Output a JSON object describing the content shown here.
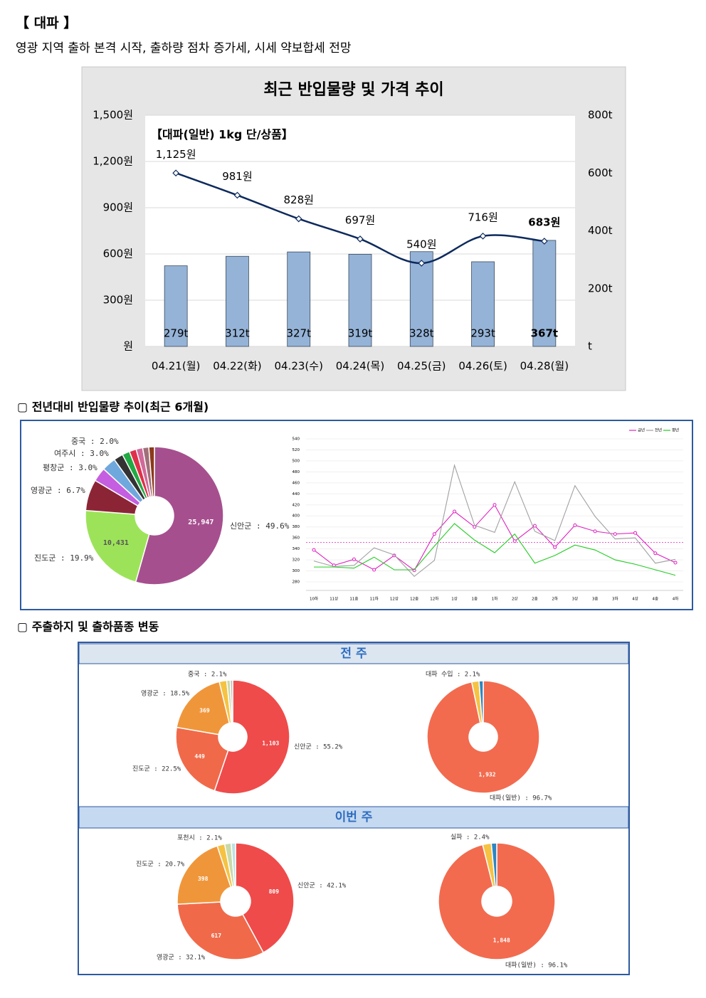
{
  "title": "【 대파 】",
  "subtitle": "영광 지역 출하 본격 시작, 출하량 점차 증가세, 시세 약보합세 전망",
  "section_titles": [
    "▢ 전년대비 반입물량 추이(최근 6개월)",
    "▢ 주출하지 및 출하품종 변동"
  ],
  "panel_titles": [
    "전 주",
    "이번 주"
  ],
  "chart_data": [
    {
      "type": "combo",
      "title": "최근 반입물량 및 가격 추이",
      "annotation": "【대파(일반) 1kg 단/상품】",
      "categories": [
        "04.21(월)",
        "04.22(화)",
        "04.23(수)",
        "04.24(목)",
        "04.25(금)",
        "04.26(토)",
        "04.28(월)"
      ],
      "series": [
        {
          "type": "bar",
          "axis": "y2",
          "color": "#95b3d7",
          "values": [
            279,
            312,
            327,
            319,
            328,
            293,
            367
          ],
          "value_labels": [
            "279t",
            "312t",
            "327t",
            "319t",
            "328t",
            "293t",
            "367t"
          ]
        },
        {
          "type": "line",
          "color": "#0d2a5c",
          "values": [
            1125,
            981,
            828,
            697,
            540,
            716,
            683
          ],
          "value_labels": [
            "1,125원",
            "981원",
            "828원",
            "697원",
            "540원",
            "716원",
            "683원"
          ]
        }
      ],
      "ylim": [
        0,
        1500
      ],
      "yticks": [
        {
          "value": 0,
          "label": "원"
        },
        {
          "value": 300,
          "label": "300원"
        },
        {
          "value": 600,
          "label": "600원"
        },
        {
          "value": 900,
          "label": "900원"
        },
        {
          "value": 1200,
          "label": "1,200원"
        },
        {
          "value": 1500,
          "label": "1,500원"
        }
      ],
      "y2lim": [
        0,
        800
      ],
      "y2ticks": [
        {
          "value": 0,
          "label": "t"
        },
        {
          "value": 200,
          "label": "200t"
        },
        {
          "value": 400,
          "label": "400t"
        },
        {
          "value": 600,
          "label": "600t"
        },
        {
          "value": 800,
          "label": "800t"
        }
      ],
      "grid": true
    },
    {
      "type": "donut",
      "values": [
        49.6,
        19.9,
        6.7,
        3.0,
        3.0,
        2.0,
        1.6,
        1.5,
        1.4,
        1.3,
        1.2
      ],
      "value_labels": [
        "신안군 : 49.6%",
        "진도군 : 19.9%",
        "영광군 : 6.7%",
        "평창군 : 3.0%",
        "여주시 : 3.0%",
        "중국 : 2.0%",
        null,
        null,
        null,
        null,
        null
      ],
      "amounts": [
        25947,
        10431,
        null,
        null,
        null,
        null,
        null,
        null,
        null,
        null,
        null
      ],
      "amount_labels": [
        "25,947",
        "10,431",
        null,
        null,
        null,
        null,
        null,
        null,
        null,
        null,
        null
      ],
      "colors": [
        "#a64f8e",
        "#9de35a",
        "#8b2535",
        "#c55ee0",
        "#6fa8dc",
        "#333333",
        "#22aa44",
        "#e0304a",
        "#d06a9a",
        "#a0707a",
        "#8b3a1a"
      ]
    },
    {
      "type": "line",
      "categories": [
        "10하",
        "11상",
        "11중",
        "11하",
        "12상",
        "12중",
        "12하",
        "1상",
        "1중",
        "1하",
        "2상",
        "2중",
        "2하",
        "3상",
        "3중",
        "3하",
        "4상",
        "4중",
        "4하"
      ],
      "series": [
        {
          "name": "금년",
          "color": "#e020c0",
          "values": [
            338,
            310,
            321,
            302,
            328,
            301,
            367,
            408,
            380,
            420,
            354,
            382,
            343,
            383,
            372,
            367,
            369,
            332,
            315
          ]
        },
        {
          "name": "전년",
          "color": "#a0a0a0",
          "values": [
            318,
            308,
            310,
            342,
            329,
            290,
            319,
            492,
            383,
            370,
            462,
            372,
            355,
            455,
            399,
            358,
            360,
            314,
            321
          ]
        },
        {
          "name": "평년",
          "color": "#22cc22",
          "values": [
            307,
            307,
            305,
            325,
            302,
            302,
            345,
            386,
            356,
            333,
            367,
            314,
            328,
            347,
            338,
            320,
            312,
            302,
            292
          ]
        }
      ],
      "reference_line": {
        "value": 352,
        "color": "#e020c0"
      },
      "ylim": [
        280,
        540
      ],
      "yticks": [
        280,
        300,
        320,
        340,
        360,
        380,
        400,
        420,
        440,
        460,
        480,
        500,
        520,
        540
      ],
      "grid": true,
      "legend": "top-right"
    },
    {
      "type": "donut",
      "values": [
        55.2,
        22.5,
        18.5,
        2.1,
        1.0,
        0.7
      ],
      "value_labels": [
        "신안군 : 55.2%",
        "진도군 : 22.5%",
        "영광군 : 18.5%",
        "중국 : 2.1%",
        null,
        null
      ],
      "amounts": [
        1103,
        449,
        369,
        null,
        null,
        null
      ],
      "amount_labels": [
        "1,103",
        "449",
        "369",
        null,
        null,
        null
      ],
      "colors": [
        "#ef4b4b",
        "#f06a4a",
        "#f0963a",
        "#f5c242",
        "#c9d9a8",
        "#bfbfbf"
      ]
    },
    {
      "type": "donut",
      "values": [
        96.7,
        2.1,
        1.2
      ],
      "value_labels": [
        "대파(일반) : 96.7%",
        "대파 수입 : 2.1%",
        null
      ],
      "amounts": [
        1932,
        null,
        null
      ],
      "amount_labels": [
        "1,932",
        null,
        null
      ],
      "colors": [
        "#f26b4f",
        "#f5c242",
        "#2e86c1"
      ]
    },
    {
      "type": "donut",
      "values": [
        42.1,
        32.1,
        20.7,
        2.1,
        1.8,
        1.2
      ],
      "value_labels": [
        "신안군 : 42.1%",
        "영광군 : 32.1%",
        "진도군 : 20.7%",
        "포천시 : 2.1%",
        null,
        null
      ],
      "amounts": [
        809,
        617,
        398,
        null,
        null,
        null
      ],
      "amount_labels": [
        "809",
        "617",
        "398",
        null,
        null,
        null
      ],
      "colors": [
        "#ef4b4b",
        "#f06a4a",
        "#f0963a",
        "#f5c242",
        "#c9d9a8",
        "#bfe0e0"
      ]
    },
    {
      "type": "donut",
      "values": [
        96.1,
        2.4,
        1.5
      ],
      "value_labels": [
        "대파(일반) : 96.1%",
        "실파 : 2.4%",
        null
      ],
      "amounts": [
        1848,
        null,
        null
      ],
      "amount_labels": [
        "1,848",
        null,
        null
      ],
      "colors": [
        "#f26b4f",
        "#f5c242",
        "#2e86c1"
      ]
    }
  ]
}
